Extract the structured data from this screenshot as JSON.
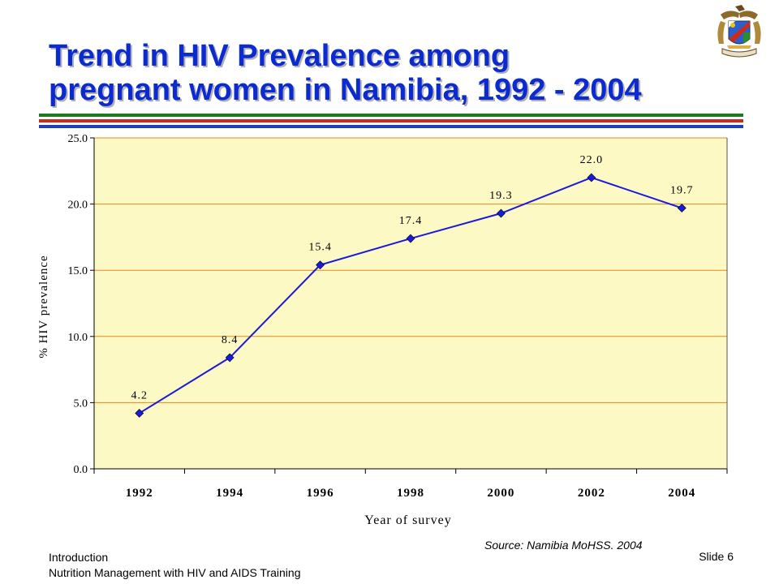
{
  "slide": {
    "title_lines": [
      "Trend in HIV Prevalence among",
      "pregnant women in Namibia, 1992 - 2004"
    ],
    "source": "Source:  Namibia MoHSS. 2004",
    "footer_lines": [
      "Introduction",
      "Nutrition Management with HIV and AIDS Training"
    ],
    "slide_number": "Slide 6",
    "stripe_colors": [
      "#1f7a1f",
      "#cc2a1a",
      "#1f3fb5"
    ],
    "emblem_icon": "namibia-coat-of-arms-icon"
  },
  "chart_data": {
    "type": "line",
    "categories": [
      "1992",
      "1994",
      "1996",
      "1998",
      "2000",
      "2002",
      "2004"
    ],
    "values": [
      4.2,
      8.4,
      15.4,
      17.4,
      19.3,
      22.0,
      19.7
    ],
    "data_labels": [
      "4.2",
      "8.4",
      "15.4",
      "17.4",
      "19.3",
      "22.0",
      "19.7"
    ],
    "yticks": [
      "0.0",
      "5.0",
      "10.0",
      "15.0",
      "20.0",
      "25.0"
    ],
    "ylim": [
      0,
      25
    ],
    "xlabel": "Year of survey",
    "ylabel": "% HIV prevalence",
    "grid": true,
    "colors": {
      "line": "#1a1adc",
      "plot_background": "#fdf9c4",
      "gridline": "#e0891c"
    }
  }
}
